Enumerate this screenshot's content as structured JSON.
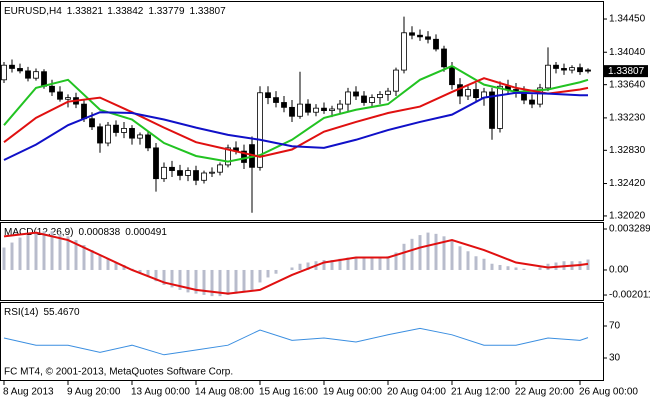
{
  "chart_data": [
    {
      "type": "candlestick",
      "title": "EURUSD,H4",
      "categories": [
        "8 Aug 2013",
        null,
        null,
        null,
        null,
        null,
        null,
        null,
        "9 Aug 20:00",
        null,
        null,
        null,
        null,
        null,
        null,
        null,
        "13 Aug 00:00",
        null,
        null,
        null,
        null,
        null,
        null,
        null,
        "14 Aug 08:00",
        null,
        null,
        null,
        null,
        null,
        null,
        null,
        "15 Aug 16:00",
        null,
        null,
        null,
        null,
        null,
        null,
        null,
        "19 Aug 00:00",
        null,
        null,
        null,
        null,
        null,
        null,
        null,
        "20 Aug 04:00",
        null,
        null,
        null,
        null,
        null,
        null,
        null,
        "21 Aug 12:00",
        null,
        null,
        null,
        null,
        null,
        null,
        null,
        "22 Aug 20:00",
        null,
        null,
        null,
        null,
        null,
        null,
        null,
        "26 Aug 00:00",
        null
      ],
      "candles": [
        [
          1.337,
          1.3392,
          1.3366,
          1.3388
        ],
        [
          1.3388,
          1.3395,
          1.3379,
          1.3384
        ],
        [
          1.3384,
          1.339,
          1.3378,
          1.3381
        ],
        [
          1.3381,
          1.3386,
          1.3368,
          1.3372
        ],
        [
          1.3372,
          1.3384,
          1.3369,
          1.338
        ],
        [
          1.338,
          1.3383,
          1.3359,
          1.3362
        ],
        [
          1.3362,
          1.337,
          1.335,
          1.3355
        ],
        [
          1.3355,
          1.3362,
          1.3343,
          1.3346
        ],
        [
          1.3346,
          1.3352,
          1.3336,
          1.3348
        ],
        [
          1.3348,
          1.3354,
          1.3335,
          1.334
        ],
        [
          1.334,
          1.3345,
          1.3318,
          1.3322
        ],
        [
          1.3322,
          1.333,
          1.3308,
          1.3312
        ],
        [
          1.3312,
          1.3316,
          1.328,
          1.3292
        ],
        [
          1.3292,
          1.3318,
          1.3288,
          1.3314
        ],
        [
          1.3314,
          1.332,
          1.33,
          1.3305
        ],
        [
          1.3305,
          1.3318,
          1.3298,
          1.331
        ],
        [
          1.331,
          1.3314,
          1.329,
          1.3298
        ],
        [
          1.3298,
          1.3305,
          1.329,
          1.3302
        ],
        [
          1.3302,
          1.3306,
          1.3282,
          1.3286
        ],
        [
          1.3286,
          1.3292,
          1.3232,
          1.3248
        ],
        [
          1.3248,
          1.3268,
          1.3244,
          1.3262
        ],
        [
          1.3262,
          1.327,
          1.325,
          1.3258
        ],
        [
          1.3258,
          1.3265,
          1.3246,
          1.3252
        ],
        [
          1.3252,
          1.3262,
          1.3245,
          1.3258
        ],
        [
          1.3258,
          1.3264,
          1.324,
          1.3246
        ],
        [
          1.3246,
          1.3258,
          1.3242,
          1.3255
        ],
        [
          1.3255,
          1.3262,
          1.325,
          1.3256
        ],
        [
          1.3256,
          1.3268,
          1.3252,
          1.3265
        ],
        [
          1.3265,
          1.329,
          1.3262,
          1.3286
        ],
        [
          1.3286,
          1.3294,
          1.3278,
          1.3282
        ],
        [
          1.3282,
          1.329,
          1.326,
          1.3268
        ],
        [
          1.329,
          1.33,
          1.3206,
          1.3262
        ],
        [
          1.3262,
          1.3362,
          1.3258,
          1.3354
        ],
        [
          1.3354,
          1.3362,
          1.334,
          1.3348
        ],
        [
          1.3348,
          1.3356,
          1.3336,
          1.3342
        ],
        [
          1.3342,
          1.335,
          1.333,
          1.3336
        ],
        [
          1.3336,
          1.3345,
          1.3318,
          1.3325
        ],
        [
          1.3325,
          1.338,
          1.3322,
          1.334
        ],
        [
          1.334,
          1.3346,
          1.3326,
          1.333
        ],
        [
          1.333,
          1.334,
          1.3325,
          1.3335
        ],
        [
          1.3335,
          1.3342,
          1.3328,
          1.3332
        ],
        [
          1.3332,
          1.3338,
          1.3324,
          1.3334
        ],
        [
          1.3334,
          1.3345,
          1.3328,
          1.334
        ],
        [
          1.334,
          1.336,
          1.333,
          1.3355
        ],
        [
          1.3355,
          1.3362,
          1.3345,
          1.335
        ],
        [
          1.335,
          1.3356,
          1.3338,
          1.3342
        ],
        [
          1.3342,
          1.3352,
          1.3336,
          1.3348
        ],
        [
          1.3348,
          1.3356,
          1.334,
          1.3352
        ],
        [
          1.3352,
          1.336,
          1.3344,
          1.3356
        ],
        [
          1.3356,
          1.3385,
          1.335,
          1.3382
        ],
        [
          1.3382,
          1.3448,
          1.3378,
          1.3428
        ],
        [
          1.3428,
          1.3436,
          1.342,
          1.3425
        ],
        [
          1.3425,
          1.3432,
          1.3418,
          1.3423
        ],
        [
          1.3423,
          1.343,
          1.3415,
          1.342
        ],
        [
          1.342,
          1.3426,
          1.3405,
          1.3408
        ],
        [
          1.3408,
          1.3412,
          1.338,
          1.3386
        ],
        [
          1.3386,
          1.3392,
          1.3358,
          1.3364
        ],
        [
          1.3364,
          1.3372,
          1.334,
          1.335
        ],
        [
          1.335,
          1.3362,
          1.3345,
          1.3358
        ],
        [
          1.3358,
          1.3366,
          1.3342,
          1.3348
        ],
        [
          1.3348,
          1.336,
          1.3338,
          1.3355
        ],
        [
          1.3355,
          1.336,
          1.3296,
          1.331
        ],
        [
          1.331,
          1.3368,
          1.3305,
          1.3362
        ],
        [
          1.3362,
          1.337,
          1.3352,
          1.3358
        ],
        [
          1.3358,
          1.3366,
          1.3348,
          1.3355
        ],
        [
          1.3355,
          1.3362,
          1.334,
          1.3345
        ],
        [
          1.3345,
          1.3352,
          1.3335,
          1.334
        ],
        [
          1.334,
          1.3365,
          1.3336,
          1.336
        ],
        [
          1.336,
          1.341,
          1.3356,
          1.3388
        ],
        [
          1.3388,
          1.3392,
          1.3378,
          1.3384
        ],
        [
          1.3384,
          1.339,
          1.3376,
          1.3382
        ],
        [
          1.3382,
          1.3388,
          1.3378,
          1.3385
        ],
        [
          1.3385,
          1.339,
          1.3376,
          1.338
        ],
        [
          1.33821,
          1.33842,
          1.33779,
          1.33807
        ]
      ],
      "up_color": "#ffffff",
      "down_color": "#000000",
      "series": [
        {
          "color": "#22c322",
          "x": [
            0,
            4,
            8,
            12,
            16,
            20,
            24,
            28,
            32,
            36,
            40,
            44,
            48,
            52,
            56,
            60,
            64,
            68,
            72,
            73
          ],
          "values": [
            1.3314,
            1.336,
            1.337,
            1.3333,
            1.3321,
            1.3292,
            1.3276,
            1.3269,
            1.3277,
            1.3296,
            1.3323,
            1.3333,
            1.334,
            1.337,
            1.3387,
            1.3364,
            1.3355,
            1.3358,
            1.3367,
            1.337
          ]
        },
        {
          "color": "#e01010",
          "x": [
            0,
            4,
            8,
            12,
            16,
            20,
            24,
            28,
            32,
            36,
            40,
            44,
            48,
            52,
            56,
            60,
            64,
            68,
            72,
            73
          ],
          "values": [
            1.3293,
            1.3323,
            1.3343,
            1.3348,
            1.333,
            1.3311,
            1.3293,
            1.3284,
            1.3275,
            1.3284,
            1.3306,
            1.3318,
            1.3329,
            1.3337,
            1.3355,
            1.3372,
            1.336,
            1.3353,
            1.3358,
            1.336
          ]
        },
        {
          "color": "#1010c8",
          "x": [
            0,
            4,
            8,
            12,
            16,
            20,
            24,
            28,
            32,
            36,
            40,
            44,
            48,
            52,
            56,
            60,
            64,
            68,
            72,
            73
          ],
          "values": [
            1.3271,
            1.329,
            1.3314,
            1.333,
            1.3329,
            1.3321,
            1.3311,
            1.3302,
            1.3296,
            1.3288,
            1.3286,
            1.3296,
            1.3308,
            1.3318,
            1.3327,
            1.3348,
            1.3354,
            1.3353,
            1.3351,
            1.3351
          ]
        }
      ],
      "ylim": [
        1.3197,
        1.3466
      ],
      "yticks": [
        {
          "value": 1.3445,
          "label": "1.34450"
        },
        {
          "value": 1.3404,
          "label": "1.34040"
        },
        {
          "value": 1.3364,
          "label": "1.33640"
        },
        {
          "value": 1.3323,
          "label": "1.33230"
        },
        {
          "value": 1.3283,
          "label": "1.32830"
        },
        {
          "value": 1.3242,
          "label": "1.32420"
        },
        {
          "value": 1.3202,
          "label": "1.32020"
        }
      ]
    },
    {
      "type": "bar",
      "title": "MACD(12,26,9)",
      "color": "#b8bccc",
      "values": [
        0.0018,
        0.0022,
        0.0026,
        0.0028,
        0.003,
        0.0031,
        0.0031,
        0.0029,
        0.0027,
        0.0024,
        0.002,
        0.0016,
        0.0012,
        0.0009,
        0.0006,
        0.0004,
        0.0001,
        -0.0002,
        -0.0005,
        -0.0009,
        -0.0012,
        -0.0014,
        -0.0016,
        -0.0018,
        -0.0019,
        -0.002,
        -0.0021,
        -0.0021,
        -0.002,
        -0.0019,
        -0.0018,
        -0.0016,
        -0.001,
        -0.0006,
        -0.0003,
        0,
        0.0002,
        0.0005,
        0.0006,
        0.0007,
        0.0008,
        0.0008,
        0.0009,
        0.001,
        0.001,
        0.001,
        0.001,
        0.001,
        0.0011,
        0.0014,
        0.0021,
        0.0025,
        0.0028,
        0.003,
        0.0029,
        0.0027,
        0.0024,
        0.0019,
        0.0015,
        0.0011,
        0.0009,
        0.0005,
        0.0004,
        0.0003,
        0.0002,
        0.0001,
        0,
        0.0002,
        0.0005,
        0.0006,
        0.0007,
        0.0007,
        0.0007,
        0.000838
      ],
      "series": [
        {
          "color": "#e01010",
          "x": [
            0,
            4,
            8,
            12,
            16,
            20,
            24,
            28,
            32,
            36,
            40,
            44,
            48,
            52,
            56,
            60,
            64,
            68,
            72,
            73
          ],
          "values": [
            0.0027,
            0.003,
            0.0024,
            0.0012,
            0,
            -0.001,
            -0.0016,
            -0.0019,
            -0.0016,
            -0.0004,
            0.0006,
            0.001,
            0.001,
            0.0018,
            0.0024,
            0.0016,
            0.0006,
            0.0002,
            0.0004,
            0.000491
          ]
        }
      ],
      "ylim": [
        -0.00241,
        0.00377
      ],
      "yticks": [
        0.003289,
        {
          "value": 0,
          "label": "0.00"
        },
        -0.002011
      ]
    },
    {
      "type": "line",
      "title": "RSI(14)",
      "series": [
        {
          "color": "#3a8ee0",
          "x": [
            0,
            4,
            8,
            12,
            16,
            20,
            24,
            28,
            32,
            36,
            40,
            44,
            48,
            52,
            56,
            60,
            64,
            68,
            72,
            73
          ],
          "values": [
            55,
            46,
            46,
            37,
            46,
            34,
            40,
            46,
            65,
            52,
            55,
            50,
            59,
            67,
            59,
            46,
            46,
            55,
            52,
            55.467
          ],
          "value_labels": [
            null,
            null,
            null,
            null,
            null,
            null,
            null,
            null,
            null,
            null,
            null,
            null,
            null,
            null,
            null,
            null,
            null,
            null,
            null,
            "55.4670"
          ]
        }
      ],
      "ylim": [
        2.5,
        98.75
      ],
      "yticks": [
        70,
        30
      ],
      "annotations": [
        "FC MT4, © 2001-2013, MetaQuotes Software Corp."
      ]
    }
  ]
}
